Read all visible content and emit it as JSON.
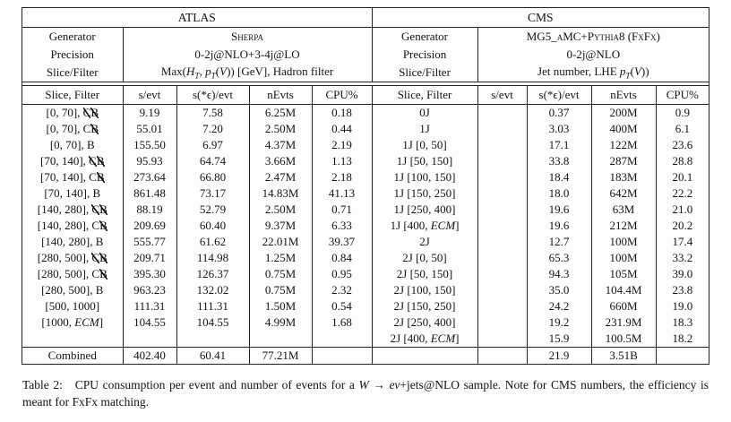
{
  "page": {
    "background": "#fdfdfd",
    "text_color": "#141414",
    "rule_color": "#222222"
  },
  "table": {
    "columns": [
      "Slice, Filter",
      "s/evt",
      "s(*ϵ)/evt",
      "nEvts",
      "CPU%"
    ],
    "atlas": {
      "title": "ATLAS",
      "generator_label": "Generator",
      "generator": "Sherpa",
      "precision_label": "Precision",
      "precision": "0-2j@NLO+3-4j@LO",
      "slice_filter_label": "Slice/Filter",
      "slice_filter": "Max(<i>H<sub>T</sub></i>, <i>p<sub>T</sub></i>(<i>V</i>)) [GeV], Hadron filter",
      "rows": [
        [
          "[0, 70], <s>C</s><s>B</s>",
          "9.19",
          "7.58",
          "6.25M",
          "0.18"
        ],
        [
          "[0, 70], C<s>B</s>",
          "55.01",
          "7.20",
          "2.50M",
          "0.44"
        ],
        [
          "[0, 70], B",
          "155.50",
          "6.97",
          "4.37M",
          "2.19"
        ],
        [
          "[70, 140], <s>C</s><s>B</s>",
          "95.93",
          "64.74",
          "3.66M",
          "1.13"
        ],
        [
          "[70, 140], C<s>B</s>",
          "273.64",
          "66.80",
          "2.47M",
          "2.18"
        ],
        [
          "[70, 140], B",
          "861.48",
          "73.17",
          "14.83M",
          "41.13"
        ],
        [
          "[140, 280], <s>C</s><s>B</s>",
          "88.19",
          "52.79",
          "2.50M",
          "0.71"
        ],
        [
          "[140, 280], C<s>B</s>",
          "209.69",
          "60.40",
          "9.37M",
          "6.33"
        ],
        [
          "[140, 280], B",
          "555.77",
          "61.62",
          "22.01M",
          "39.37"
        ],
        [
          "[280, 500], <s>C</s><s>B</s>",
          "209.71",
          "114.98",
          "1.25M",
          "0.84"
        ],
        [
          "[280, 500], C<s>B</s>",
          "395.30",
          "126.37",
          "0.75M",
          "0.95"
        ],
        [
          "[280, 500], B",
          "963.23",
          "132.02",
          "0.75M",
          "2.32"
        ],
        [
          "[500, 1000]",
          "111.31",
          "111.31",
          "1.50M",
          "0.54"
        ],
        [
          "[1000, <i>ECM</i>]",
          "104.55",
          "104.55",
          "4.99M",
          "1.68"
        ],
        [
          "",
          "",
          "",
          "",
          ""
        ]
      ],
      "combined": [
        "Combined",
        "402.40",
        "60.41",
        "77.21M",
        ""
      ]
    },
    "cms": {
      "title": "CMS",
      "generator_label": "Generator",
      "generator": "MG5_aMC+Pythia8 (FxFx)",
      "precision_label": "Precision",
      "precision": "0-2j@NLO",
      "slice_filter_label": "Slice/Filter",
      "slice_filter": "Jet number, LHE <i>p<sub>T</sub></i>(<i>V</i>))",
      "rows": [
        [
          "0J",
          "",
          "0.37",
          "200M",
          "0.9"
        ],
        [
          "1J",
          "",
          "3.03",
          "400M",
          "6.1"
        ],
        [
          "1J [0, 50]",
          "",
          "17.1",
          "122M",
          "23.6"
        ],
        [
          "1J [50, 150]",
          "",
          "33.8",
          "287M",
          "28.8"
        ],
        [
          "1J [100, 150]",
          "",
          "18.4",
          "183M",
          "20.1"
        ],
        [
          "1J [150, 250]",
          "",
          "18.0",
          "642M",
          "22.2"
        ],
        [
          "1J [250, 400]",
          "",
          "19.6",
          "63M",
          "21.0"
        ],
        [
          "1J [400, <i>ECM</i>]",
          "",
          "19.6",
          "212M",
          "20.2"
        ],
        [
          "2J",
          "",
          "12.7",
          "100M",
          "17.4"
        ],
        [
          "2J [0, 50]",
          "",
          "65.3",
          "100M",
          "33.2"
        ],
        [
          "2J [50, 150]",
          "",
          "94.3",
          "105M",
          "39.0"
        ],
        [
          "2J [100, 150]",
          "",
          "35.0",
          "104.4M",
          "23.8"
        ],
        [
          "2J [150, 250]",
          "",
          "24.2",
          "660M",
          "19.0"
        ],
        [
          "2J [250, 400]",
          "",
          "19.2",
          "231.9M",
          "18.3"
        ],
        [
          "2J [400, <i>ECM</i>]",
          "",
          "15.9",
          "100.5M",
          "18.2"
        ]
      ],
      "combined": [
        "",
        "",
        "21.9",
        "3.51B",
        ""
      ]
    }
  },
  "caption": "Table 2:&nbsp;&nbsp; CPU consumption per event and number of events for a <i>W</i> → <i>eν</i>+jets@NLO sample. Note for CMS numbers, the efficiency is meant for FxFx matching."
}
